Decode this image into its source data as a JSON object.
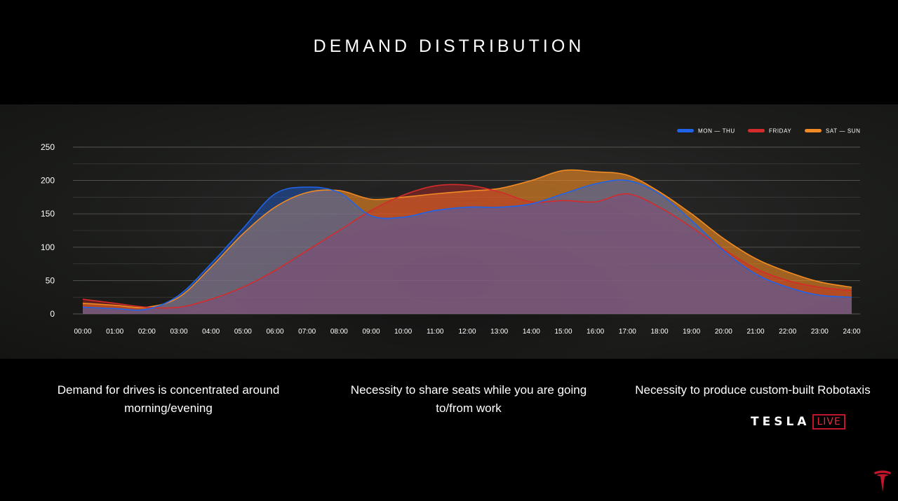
{
  "title": "DEMAND DISTRIBUTION",
  "captions": [
    "Demand for drives is concentrated around morning/evening",
    "Necessity to share seats while you are going to/from work",
    "Necessity to produce custom-built Robotaxis"
  ],
  "branding": {
    "wordmark": "TESLA",
    "live_label": "LIVE",
    "logo_icon": "tesla-t-logo-icon"
  },
  "colors": {
    "background": "#000000",
    "grid": "#6a6a66",
    "mon_thu": "#1f63e8",
    "friday": "#d42b2b",
    "sat_sun": "#f08a24",
    "live_red": "#c0162b"
  },
  "chart_data": {
    "type": "area",
    "title": "",
    "xlabel": "",
    "ylabel": "",
    "ylim": [
      0,
      250
    ],
    "yticks": [
      0,
      50,
      100,
      150,
      200,
      250
    ],
    "categories": [
      "00:00",
      "01:00",
      "02:00",
      "03:00",
      "04:00",
      "05:00",
      "06:00",
      "07:00",
      "08:00",
      "09:00",
      "10:00",
      "11:00",
      "12:00",
      "13:00",
      "14:00",
      "15:00",
      "16:00",
      "17:00",
      "18:00",
      "19:00",
      "20:00",
      "21:00",
      "22:00",
      "23:00",
      "24:00"
    ],
    "grid": true,
    "legend_position": "top-right",
    "series": [
      {
        "name": "SAT — SUN",
        "color": "#f08a24",
        "values": [
          16,
          13,
          10,
          25,
          70,
          120,
          160,
          182,
          185,
          172,
          175,
          180,
          184,
          188,
          200,
          215,
          213,
          208,
          183,
          150,
          113,
          83,
          63,
          48,
          40
        ]
      },
      {
        "name": "FRIDAY",
        "color": "#d42b2b",
        "values": [
          22,
          16,
          10,
          10,
          22,
          40,
          65,
          95,
          125,
          155,
          178,
          192,
          193,
          183,
          168,
          170,
          168,
          180,
          160,
          130,
          97,
          68,
          50,
          40,
          35
        ]
      },
      {
        "name": "MON — THU",
        "color": "#1f63e8",
        "values": [
          10,
          8,
          7,
          28,
          75,
          128,
          180,
          190,
          182,
          147,
          145,
          155,
          160,
          160,
          165,
          180,
          195,
          200,
          180,
          140,
          95,
          60,
          40,
          28,
          25
        ]
      }
    ],
    "legend_order": [
      "MON — THU",
      "FRIDAY",
      "SAT — SUN"
    ]
  }
}
